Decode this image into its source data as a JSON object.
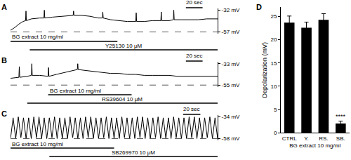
{
  "chart_data": [
    {
      "type": "line",
      "panel": "A",
      "color": "#000000",
      "tick_labels": "y",
      "x": [
        0,
        5,
        10,
        15,
        18,
        18.5,
        19,
        25,
        35,
        40,
        40.5,
        41,
        50,
        60,
        70,
        75,
        75.5,
        76,
        85,
        95,
        105,
        110,
        110.5,
        111,
        120,
        130,
        140,
        150,
        150.5,
        151,
        160,
        170,
        180,
        180.5,
        181,
        190,
        195,
        195.5,
        196,
        205,
        215,
        225,
        235,
        248
      ],
      "values": [
        -55,
        -52,
        -48,
        -45,
        -44,
        -33,
        -44,
        -42,
        -41,
        -41,
        -32,
        -41,
        -40,
        -39,
        -38,
        -38,
        -33,
        -38,
        -38,
        -39,
        -41,
        -41,
        -34,
        -41,
        -43,
        -44,
        -45,
        -45,
        -35,
        -45,
        -45,
        -44,
        -44,
        -34,
        -44,
        -44,
        -43,
        -32,
        -43,
        -43,
        -43,
        -43,
        -42,
        -42
      ],
      "xlim": [
        0,
        248
      ],
      "ylim": [
        -59,
        -30
      ],
      "yticks": [
        {
          "value": -57,
          "label": "-57 mV"
        },
        {
          "value": -32,
          "label": "-32 mV"
        }
      ],
      "baseline": -57,
      "scale_bar": {
        "label": "20 sec",
        "length": 20,
        "x": 210
      },
      "annotations": [
        {
          "text": "BG extract 10 mg/ml",
          "x_start": 0,
          "x_end": 128
        },
        {
          "text": "Y25130 10 μM",
          "x_start": 23,
          "x_end": 248
        }
      ]
    },
    {
      "type": "line",
      "panel": "B",
      "color": "#000000",
      "tick_labels": "y",
      "x": [
        0,
        10,
        10.5,
        11,
        20,
        25,
        25.5,
        26,
        35,
        45,
        45.5,
        46,
        55,
        65,
        75,
        80,
        80.5,
        81,
        90,
        100,
        110,
        120,
        130,
        140,
        150,
        160,
        170,
        180,
        190,
        200,
        210,
        220,
        230,
        240,
        248
      ],
      "values": [
        -48,
        -47,
        -36,
        -47,
        -46,
        -45,
        -33,
        -45,
        -45,
        -46,
        -37,
        -46,
        -44,
        -42,
        -40,
        -39,
        -33,
        -39,
        -40,
        -41,
        -42,
        -43,
        -43,
        -44,
        -44,
        -45,
        -45,
        -45,
        -45,
        -46,
        -46,
        -46,
        -46,
        -46,
        -46
      ],
      "xlim": [
        0,
        248
      ],
      "ylim": [
        -57,
        -31
      ],
      "yticks": [
        {
          "value": -55,
          "label": "-55 mV"
        },
        {
          "value": -33,
          "label": "-33 mV"
        }
      ],
      "baseline": -55,
      "scale_bar": {
        "label": "20 sec",
        "length": 20,
        "x": 210
      },
      "annotations": [
        {
          "text": "BG extract 10 mg/ml",
          "x_start": 45,
          "x_end": 145
        },
        {
          "text": "RS39604 10 μM",
          "x_start": 20,
          "x_end": 248
        }
      ]
    },
    {
      "type": "line",
      "panel": "C",
      "color": "#000000",
      "tick_labels": "y",
      "x": [
        0,
        3,
        6,
        9,
        12,
        15,
        18,
        21,
        24,
        27,
        30,
        33,
        36,
        39,
        42,
        45,
        48,
        51,
        54,
        57,
        60,
        63,
        66,
        69,
        72,
        75,
        78,
        81,
        84,
        87,
        90,
        93,
        96,
        99,
        102,
        105,
        108,
        111,
        114,
        117,
        120,
        123,
        126,
        129,
        132,
        135,
        138,
        141,
        144,
        147,
        150,
        153,
        156,
        159,
        162,
        165,
        168,
        171,
        174,
        177,
        180,
        183,
        186,
        189,
        192,
        195,
        198,
        201,
        204,
        207,
        210,
        213,
        216,
        219,
        222,
        225,
        228,
        231,
        234,
        237,
        240
      ],
      "values": [
        -58,
        -35,
        -58,
        -34,
        -57,
        -35,
        -58,
        -35,
        -58,
        -34,
        -57,
        -34,
        -58,
        -35,
        -58,
        -35,
        -57,
        -34,
        -58,
        -35,
        -58,
        -35,
        -58,
        -34,
        -57,
        -35,
        -58,
        -35,
        -58,
        -34,
        -57,
        -34,
        -58,
        -35,
        -58,
        -35,
        -57,
        -34,
        -58,
        -35,
        -58,
        -35,
        -58,
        -34,
        -57,
        -35,
        -58,
        -35,
        -58,
        -34,
        -57,
        -34,
        -58,
        -35,
        -58,
        -35,
        -57,
        -34,
        -58,
        -35,
        -58,
        -35,
        -58,
        -34,
        -57,
        -35,
        -58,
        -35,
        -58,
        -34,
        -57,
        -34,
        -58,
        -35,
        -58,
        -35,
        -57,
        -34,
        -58,
        -35,
        -58
      ],
      "xlim": [
        0,
        240
      ],
      "ylim": [
        -60,
        -32
      ],
      "yticks": [
        {
          "value": -58,
          "label": "-58 mV"
        },
        {
          "value": -34,
          "label": "-34 mV"
        }
      ],
      "baseline": -58,
      "scale_bar": {
        "label": "20 sec",
        "length": 20,
        "x": 200
      },
      "annotations": [
        {
          "text": "BG extract 10 mg/ml",
          "x_start": 0,
          "x_end": 120
        },
        {
          "text": "SB269970 10 μM",
          "x_start": 45,
          "x_end": 240
        }
      ]
    },
    {
      "type": "bar",
      "panel": "D",
      "color": "#000000",
      "categories": [
        "CTRL",
        "Y.",
        "RS.",
        "SB."
      ],
      "values": [
        23.7,
        22.6,
        24.3,
        2.0
      ],
      "errors": [
        1.4,
        1.2,
        1.3,
        0.5
      ],
      "ylim": [
        0,
        27
      ],
      "yticks": [
        0,
        5,
        10,
        15,
        20,
        25
      ],
      "y_label": "Depolarization (mV)",
      "x_label": "BG extract 10 mg/ml",
      "annotations": [
        {
          "text": "****",
          "category": "SB."
        }
      ]
    }
  ]
}
